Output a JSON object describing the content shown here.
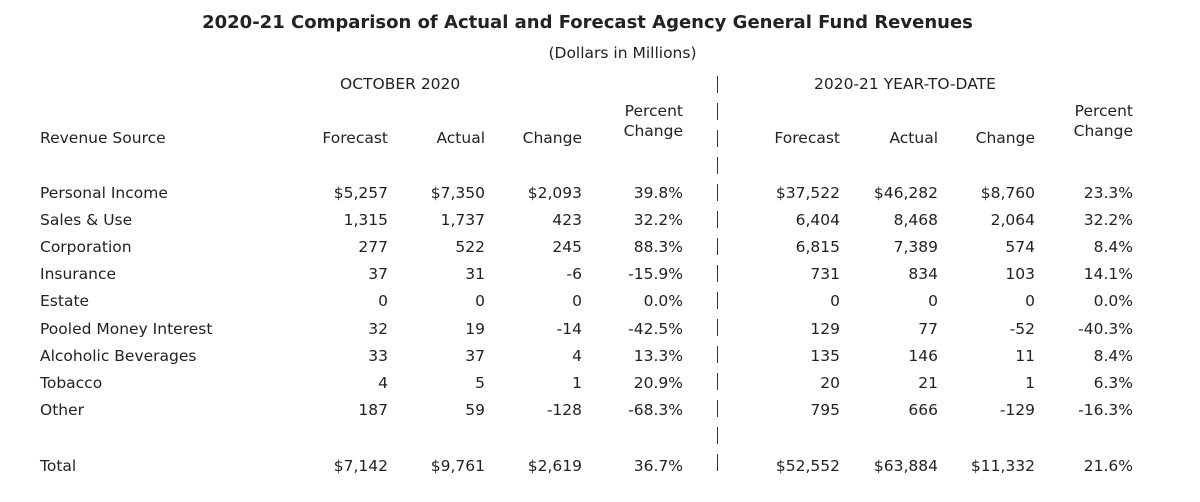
{
  "header": {
    "title": "2020-21 Comparison of Actual and Forecast Agency General Fund Revenues",
    "subtitle": "(Dollars in Millions)"
  },
  "table": {
    "groups": [
      "OCTOBER 2020",
      "2020-21  YEAR-TO-DATE"
    ],
    "columns": [
      "Revenue Source",
      "Forecast",
      "Actual",
      "Change",
      "Percent Change",
      "Forecast",
      "Actual",
      "Change",
      "Percent Change"
    ],
    "rows": [
      [
        "Personal Income",
        "$5,257",
        "$7,350",
        "$2,093",
        "39.8%",
        "$37,522",
        "$46,282",
        "$8,760",
        "23.3%"
      ],
      [
        "Sales & Use",
        "1,315",
        "1,737",
        "423",
        "32.2%",
        "6,404",
        "8,468",
        "2,064",
        "32.2%"
      ],
      [
        "Corporation",
        "277",
        "522",
        "245",
        "88.3%",
        "6,815",
        "7,389",
        "574",
        "8.4%"
      ],
      [
        "Insurance",
        "37",
        "31",
        "-6",
        "-15.9%",
        "731",
        "834",
        "103",
        "14.1%"
      ],
      [
        "Estate",
        "0",
        "0",
        "0",
        "0.0%",
        "0",
        "0",
        "0",
        "0.0%"
      ],
      [
        "Pooled Money Interest",
        "32",
        "19",
        "-14",
        "-42.5%",
        "129",
        "77",
        "-52",
        "-40.3%"
      ],
      [
        "Alcoholic Beverages",
        "33",
        "37",
        "4",
        "13.3%",
        "135",
        "146",
        "11",
        "8.4%"
      ],
      [
        "Tobacco",
        "4",
        "5",
        "1",
        "20.9%",
        "20",
        "21",
        "1",
        "6.3%"
      ],
      [
        "Other",
        "187",
        "59",
        "-128",
        "-68.3%",
        "795",
        "666",
        "-129",
        "-16.3%"
      ]
    ],
    "total": [
      "Total",
      "$7,142",
      "$9,761",
      "$2,619",
      "36.7%",
      "$52,552",
      "$63,884",
      "$11,332",
      "21.6%"
    ]
  }
}
